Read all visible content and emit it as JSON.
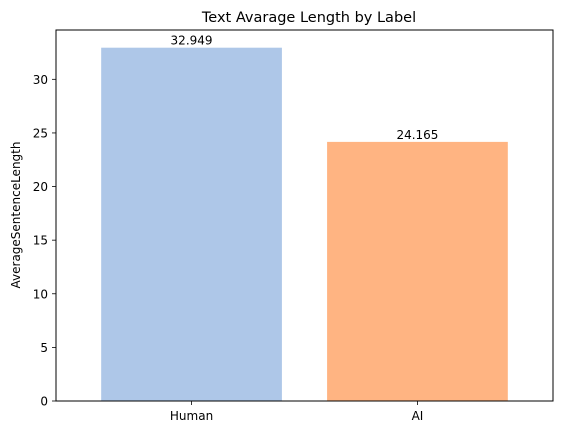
{
  "chart_data": {
    "type": "bar",
    "title": "Text Avarage Length by Label",
    "xlabel": "",
    "ylabel": "AverageSentenceLength",
    "categories": [
      "Human",
      "AI"
    ],
    "values": [
      32.949,
      24.165
    ],
    "value_labels": [
      "32.949",
      "24.165"
    ],
    "colors": [
      "#aec7e8",
      "#ffb482"
    ],
    "ylim": [
      0,
      34.6
    ],
    "yticks": [
      0,
      5,
      10,
      15,
      20,
      25,
      30
    ],
    "grid": false,
    "legend": "none"
  }
}
